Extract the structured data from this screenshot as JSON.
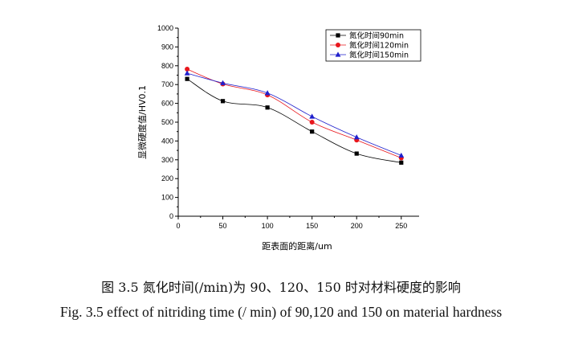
{
  "chart_data": {
    "type": "line",
    "xlabel": "距表面的距离/um",
    "ylabel": "显微硬度值/HV0.1",
    "xlim": [
      0,
      270
    ],
    "ylim": [
      0,
      1000
    ],
    "x_ticks": [
      0,
      50,
      100,
      150,
      200,
      250
    ],
    "y_ticks": [
      0,
      100,
      200,
      300,
      400,
      500,
      600,
      700,
      800,
      900,
      1000
    ],
    "legend_position": "top-right",
    "grid": false,
    "series": [
      {
        "name": "氮化时间90min",
        "color": "#000000",
        "marker": "square",
        "x": [
          10,
          50,
          100,
          150,
          200,
          250
        ],
        "y": [
          730,
          612,
          578,
          450,
          333,
          285
        ]
      },
      {
        "name": "氮化时间120min",
        "color": "#e8161c",
        "marker": "circle",
        "x": [
          10,
          50,
          100,
          150,
          200,
          250
        ],
        "y": [
          782,
          703,
          645,
          500,
          405,
          310
        ]
      },
      {
        "name": "氮化时间150min",
        "color": "#1f1fcc",
        "marker": "triangle",
        "x": [
          10,
          50,
          100,
          150,
          200,
          250
        ],
        "y": [
          760,
          708,
          655,
          530,
          420,
          323
        ]
      }
    ]
  },
  "captions": {
    "zh": "图 3.5 氮化时间(/min)为 90、120、150 时对材料硬度的影响",
    "en": "Fig. 3.5 effect of nitriding time (/ min) of 90,120 and 150 on material hardness"
  }
}
